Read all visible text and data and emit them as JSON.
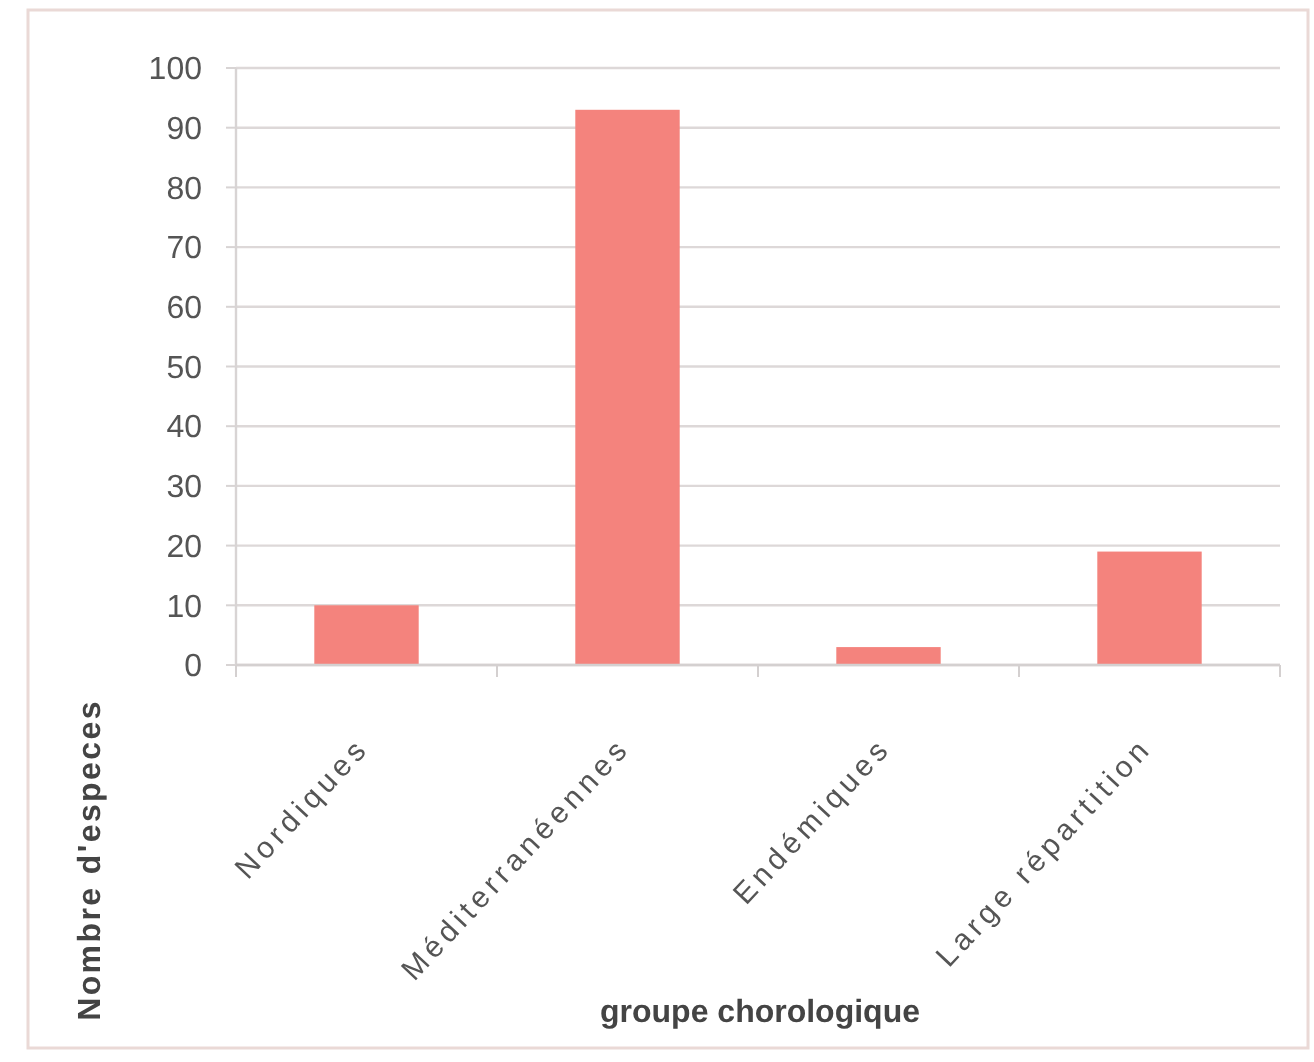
{
  "chart_data": {
    "type": "bar",
    "xlabel": "groupe chorologique",
    "ylabel": "Nombre d'especes",
    "categories": [
      "Nordiques",
      "Méditerranéennes",
      "Endémiques",
      "Large répartition"
    ],
    "values": [
      10,
      93,
      3,
      19
    ],
    "color": "#f4837d",
    "ylim": [
      0,
      100
    ],
    "yticks": [
      0,
      10,
      20,
      30,
      40,
      50,
      60,
      70,
      80,
      90,
      100
    ],
    "grid": "y"
  }
}
